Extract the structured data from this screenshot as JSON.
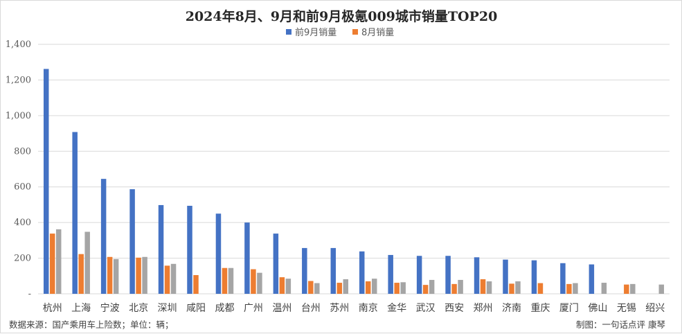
{
  "chart_data": {
    "type": "bar",
    "title": "2024年8月、9月和前9月极氪009城市销量TOP20",
    "categories": [
      "杭州",
      "上海",
      "宁波",
      "北京",
      "深圳",
      "咸阳",
      "成都",
      "广州",
      "温州",
      "台州",
      "苏州",
      "南京",
      "金华",
      "武汉",
      "西安",
      "郑州",
      "济南",
      "重庆",
      "厦门",
      "佛山",
      "无锡",
      "绍兴"
    ],
    "series": [
      {
        "name": "前9月销量",
        "color": "#4472c4",
        "values": [
          1262,
          908,
          645,
          587,
          498,
          494,
          450,
          400,
          338,
          257,
          257,
          238,
          218,
          213,
          213,
          205,
          192,
          188,
          172,
          165,
          null,
          null
        ]
      },
      {
        "name": "8月销量",
        "color": "#ed7d31",
        "values": [
          338,
          223,
          207,
          203,
          158,
          105,
          145,
          138,
          93,
          72,
          62,
          70,
          62,
          50,
          55,
          82,
          57,
          60,
          55,
          null,
          52,
          null
        ]
      },
      {
        "name": "",
        "color": "#a5a5a5",
        "values": [
          362,
          348,
          195,
          207,
          168,
          null,
          145,
          118,
          85,
          60,
          82,
          85,
          65,
          78,
          78,
          70,
          70,
          null,
          60,
          62,
          55,
          52
        ]
      }
    ],
    "ylim": [
      0,
      1400
    ],
    "yticks": [
      "-",
      "200",
      "400",
      "600",
      "800",
      "1,000",
      "1,200",
      "1,400"
    ],
    "ytick_values": [
      0,
      200,
      400,
      600,
      800,
      1000,
      1200,
      1400
    ],
    "grid": true,
    "legend_position": "top-center",
    "xlabel": "",
    "ylabel": ""
  },
  "footer": {
    "source": "数据来源：国产乘用车上险数；单位：辆；",
    "credit": "制图：一句话点评  康琴"
  }
}
